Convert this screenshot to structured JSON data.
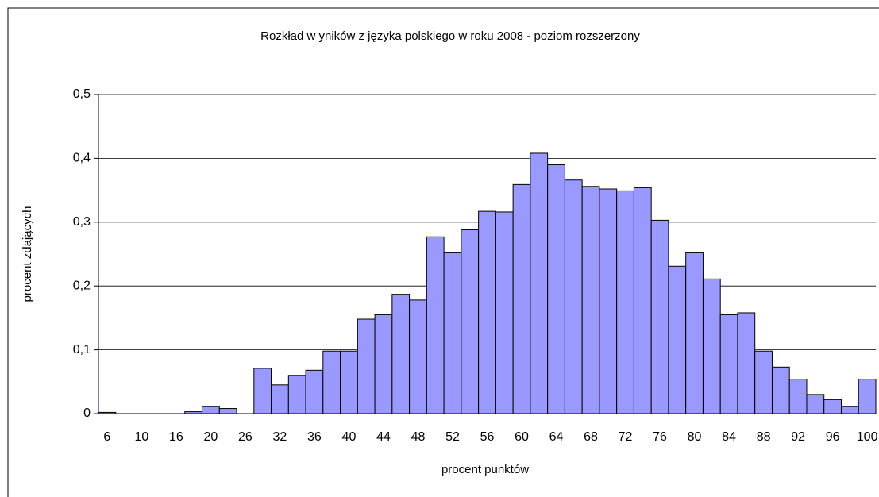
{
  "chart_data": {
    "type": "bar",
    "title": "Rozkład w yników  z języka polskiego w  roku 2008 - poziom rozszerzony",
    "x_label": "procent punktów",
    "y_label": "procent zdających",
    "categories": [
      "6",
      null,
      "10",
      null,
      "16",
      null,
      "20",
      null,
      "26",
      null,
      "32",
      null,
      "36",
      null,
      "40",
      null,
      "44",
      null,
      "48",
      null,
      "52",
      null,
      "56",
      null,
      "60",
      null,
      "64",
      null,
      "68",
      null,
      "72",
      null,
      "76",
      null,
      "80",
      null,
      "84",
      null,
      "88",
      null,
      "92",
      null,
      "96",
      null,
      "100"
    ],
    "values": [
      0.002,
      0,
      0,
      0,
      0,
      0.003,
      0.011,
      0.008,
      0,
      0.071,
      0.045,
      0.06,
      0.068,
      0.098,
      0.098,
      0.148,
      0.155,
      0.187,
      0.178,
      0.277,
      0.252,
      0.288,
      0.317,
      0.316,
      0.359,
      0.408,
      0.39,
      0.366,
      0.356,
      0.352,
      0.349,
      0.354,
      0.303,
      0.231,
      0.252,
      0.211,
      0.155,
      0.158,
      0.098,
      0.073,
      0.054,
      0.03,
      0.022,
      0.011,
      0.054
    ],
    "color": "#9999ff",
    "ylim": [
      0,
      0.5
    ],
    "yticks": [
      0,
      {
        "value": 0.1,
        "label": "0,1"
      },
      {
        "value": 0.2,
        "label": "0,2"
      },
      {
        "value": 0.3,
        "label": "0,3"
      },
      {
        "value": 0.4,
        "label": "0,4"
      },
      {
        "value": 0.5,
        "label": "0,5"
      }
    ],
    "grid": true
  }
}
